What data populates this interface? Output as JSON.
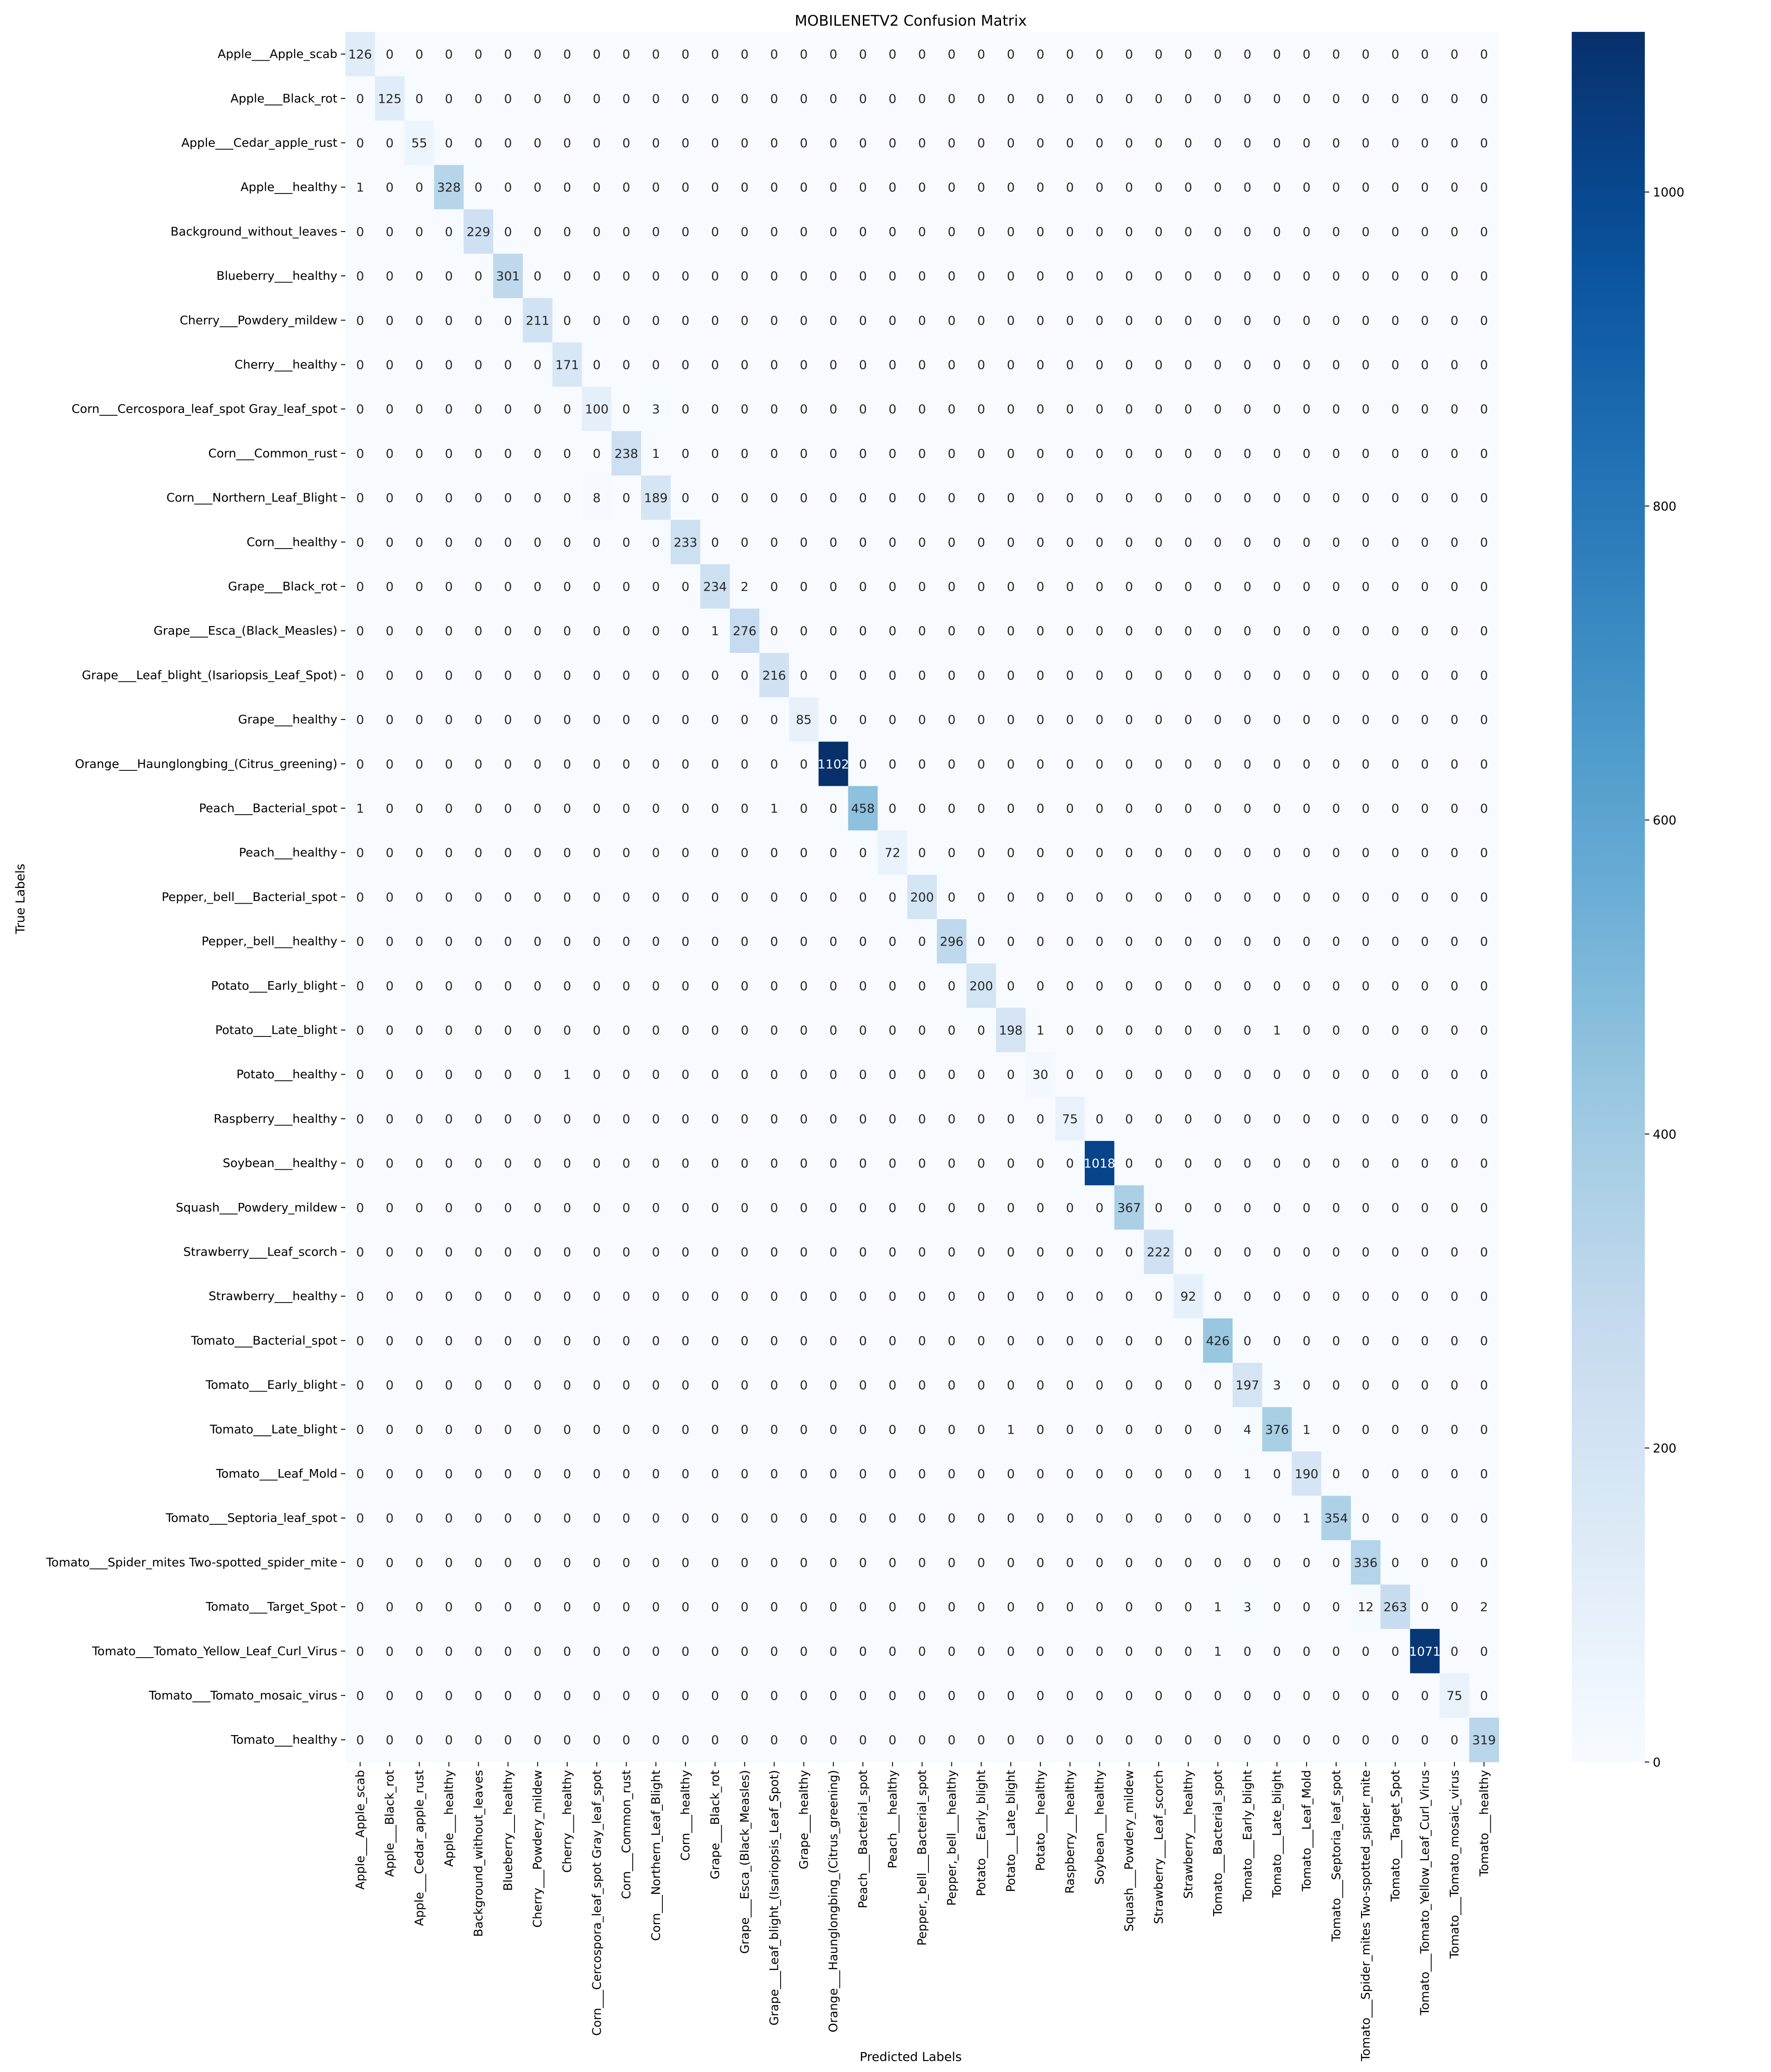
{
  "chart_data": {
    "type": "heatmap",
    "title": "MOBILENETV2 Confusion Matrix",
    "xlabel": "Predicted Labels",
    "ylabel": "True Labels",
    "colormap": "Blues",
    "colorbar_range": [
      0,
      1102
    ],
    "colorbar_ticks": [
      0,
      200,
      400,
      600,
      800,
      1000
    ],
    "colors": {
      "low": "#f7fbff",
      "high": "#08306b"
    },
    "labels": [
      "Apple___Apple_scab",
      "Apple___Black_rot",
      "Apple___Cedar_apple_rust",
      "Apple___healthy",
      "Background_without_leaves",
      "Blueberry___healthy",
      "Cherry___Powdery_mildew",
      "Cherry___healthy",
      "Corn___Cercospora_leaf_spot Gray_leaf_spot",
      "Corn___Common_rust",
      "Corn___Northern_Leaf_Blight",
      "Corn___healthy",
      "Grape___Black_rot",
      "Grape___Esca_(Black_Measles)",
      "Grape___Leaf_blight_(Isariopsis_Leaf_Spot)",
      "Grape___healthy",
      "Orange___Haunglongbing_(Citrus_greening)",
      "Peach___Bacterial_spot",
      "Peach___healthy",
      "Pepper,_bell___Bacterial_spot",
      "Pepper,_bell___healthy",
      "Potato___Early_blight",
      "Potato___Late_blight",
      "Potato___healthy",
      "Raspberry___healthy",
      "Soybean___healthy",
      "Squash___Powdery_mildew",
      "Strawberry___Leaf_scorch",
      "Strawberry___healthy",
      "Tomato___Bacterial_spot",
      "Tomato___Early_blight",
      "Tomato___Late_blight",
      "Tomato___Leaf_Mold",
      "Tomato___Septoria_leaf_spot",
      "Tomato___Spider_mites Two-spotted_spider_mite",
      "Tomato___Target_Spot",
      "Tomato___Tomato_Yellow_Leaf_Curl_Virus",
      "Tomato___Tomato_mosaic_virus",
      "Tomato___healthy"
    ],
    "diagonal": [
      126,
      125,
      55,
      328,
      229,
      301,
      211,
      171,
      100,
      238,
      189,
      233,
      234,
      276,
      216,
      85,
      1102,
      458,
      72,
      200,
      296,
      200,
      198,
      30,
      75,
      1018,
      367,
      222,
      92,
      426,
      197,
      376,
      190,
      354,
      336,
      263,
      1071,
      75,
      319
    ],
    "off_diagonal": [
      {
        "true": 3,
        "pred": 0,
        "value": 1
      },
      {
        "true": 8,
        "pred": 10,
        "value": 3
      },
      {
        "true": 9,
        "pred": 10,
        "value": 1
      },
      {
        "true": 10,
        "pred": 8,
        "value": 8
      },
      {
        "true": 12,
        "pred": 13,
        "value": 2
      },
      {
        "true": 13,
        "pred": 12,
        "value": 1
      },
      {
        "true": 17,
        "pred": 0,
        "value": 1
      },
      {
        "true": 17,
        "pred": 14,
        "value": 1
      },
      {
        "true": 22,
        "pred": 23,
        "value": 1
      },
      {
        "true": 22,
        "pred": 31,
        "value": 1
      },
      {
        "true": 23,
        "pred": 7,
        "value": 1
      },
      {
        "true": 30,
        "pred": 31,
        "value": 3
      },
      {
        "true": 31,
        "pred": 22,
        "value": 1
      },
      {
        "true": 31,
        "pred": 30,
        "value": 4
      },
      {
        "true": 31,
        "pred": 32,
        "value": 1
      },
      {
        "true": 32,
        "pred": 30,
        "value": 1
      },
      {
        "true": 33,
        "pred": 32,
        "value": 1
      },
      {
        "true": 35,
        "pred": 29,
        "value": 1
      },
      {
        "true": 35,
        "pred": 30,
        "value": 3
      },
      {
        "true": 35,
        "pred": 34,
        "value": 12
      },
      {
        "true": 35,
        "pred": 38,
        "value": 2
      },
      {
        "true": 36,
        "pred": 29,
        "value": 1
      }
    ]
  }
}
